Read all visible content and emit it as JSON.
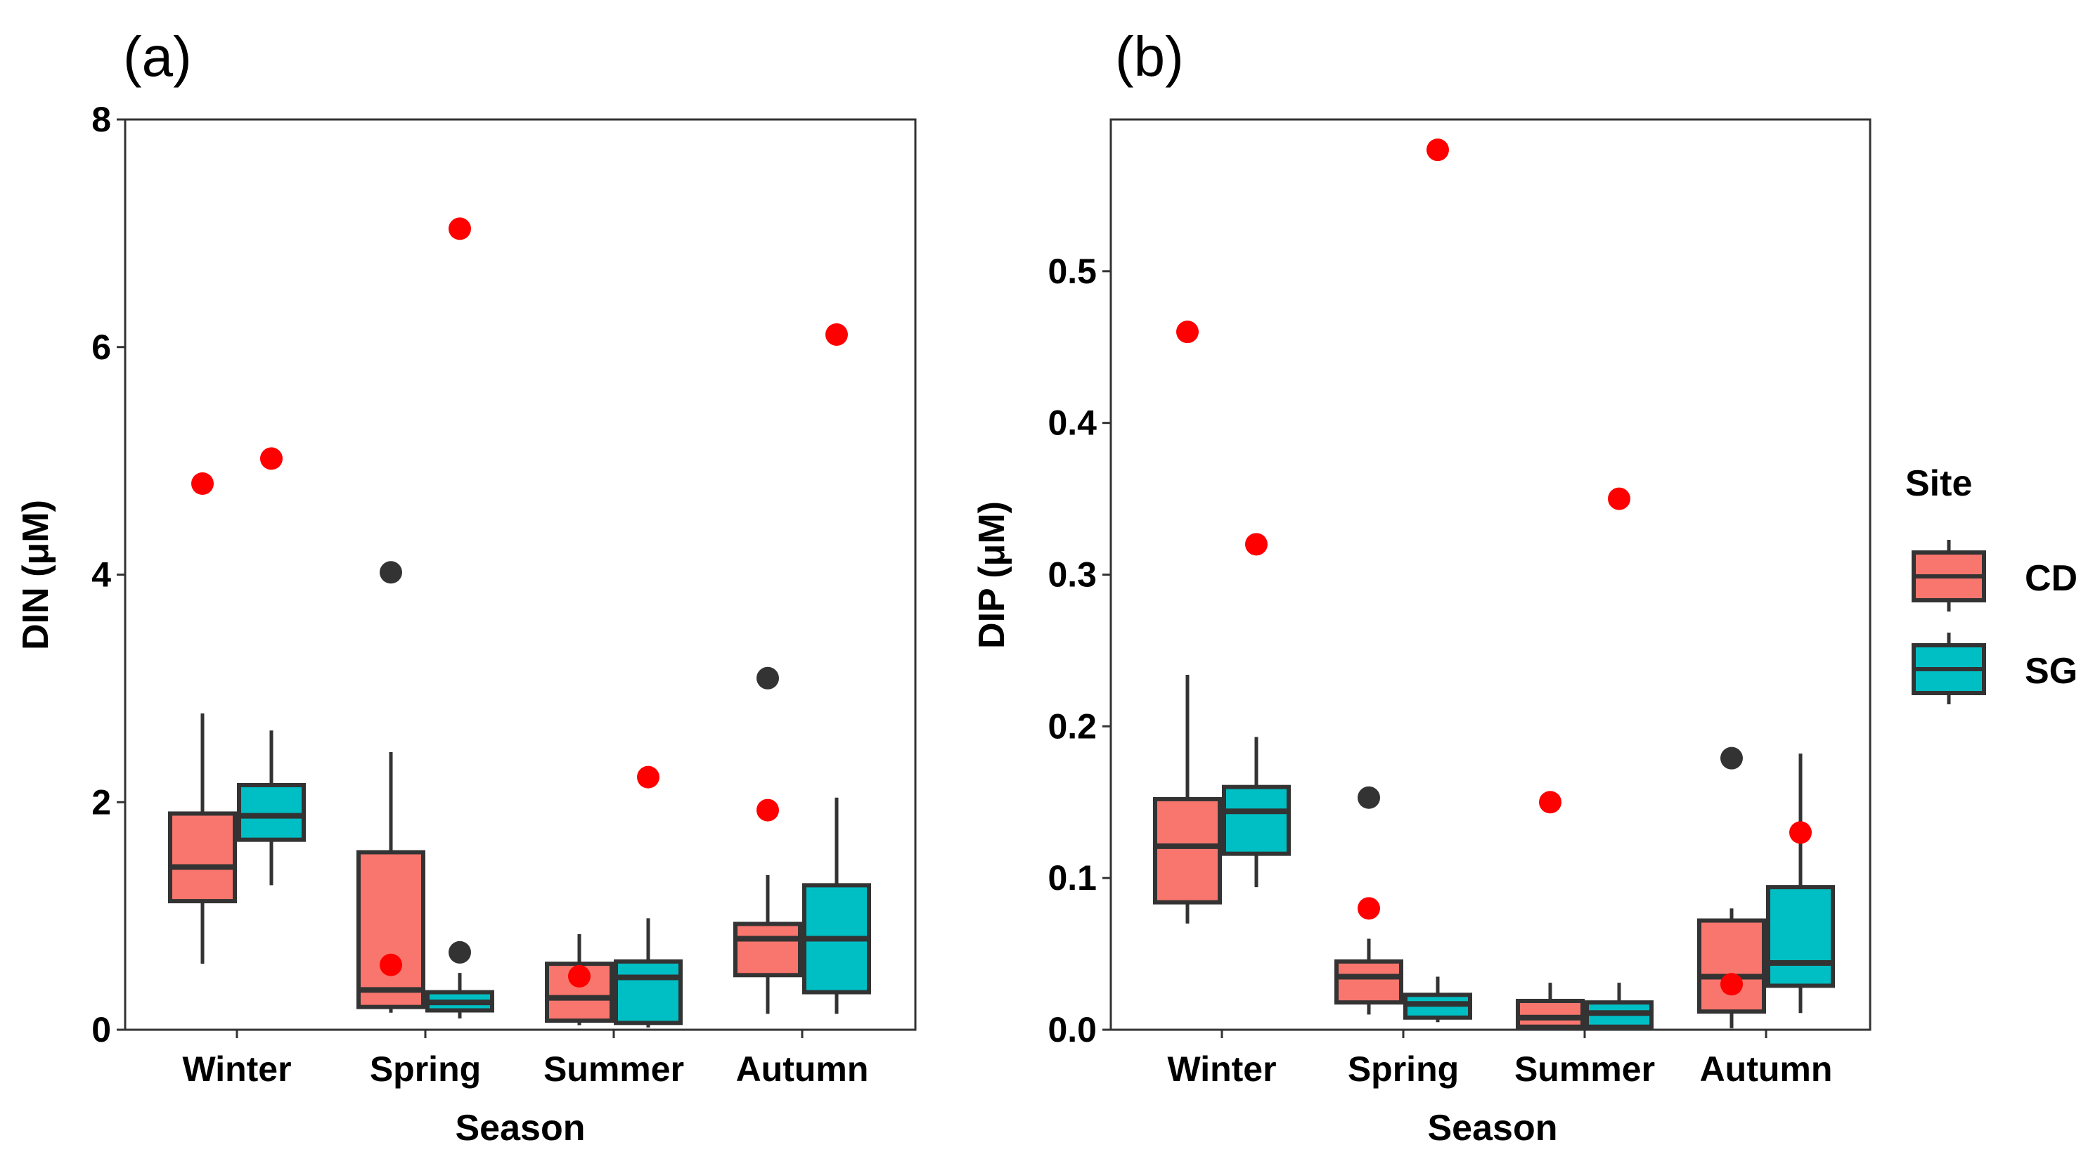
{
  "chart_data": [
    {
      "type": "box",
      "panel_label": "(a)",
      "xlabel": "Season",
      "ylabel": "DIN (μM)",
      "categories": [
        "Winter",
        "Spring",
        "Summer",
        "Autumn"
      ],
      "ylim": [
        0,
        8
      ],
      "yticks": [
        0,
        2,
        4,
        6,
        8
      ],
      "ytick_labels": [
        "0",
        "2",
        "4",
        "6",
        "8"
      ],
      "grid": false,
      "series": [
        {
          "name": "CD",
          "boxes": [
            {
              "whisker_low": 0.58,
              "q1": 1.13,
              "median": 1.43,
              "q3": 1.9,
              "whisker_high": 2.78,
              "outliers": []
            },
            {
              "whisker_low": 0.15,
              "q1": 0.2,
              "median": 0.35,
              "q3": 1.56,
              "whisker_high": 2.44,
              "outliers": [
                4.02
              ]
            },
            {
              "whisker_low": 0.04,
              "q1": 0.08,
              "median": 0.28,
              "q3": 0.58,
              "whisker_high": 0.84,
              "outliers": []
            },
            {
              "whisker_low": 0.14,
              "q1": 0.48,
              "median": 0.8,
              "q3": 0.93,
              "whisker_high": 1.36,
              "outliers": [
                3.09
              ]
            }
          ],
          "highlight_points": [
            4.8,
            0.57,
            0.47,
            1.93
          ]
        },
        {
          "name": "SG",
          "boxes": [
            {
              "whisker_low": 1.27,
              "q1": 1.67,
              "median": 1.88,
              "q3": 2.15,
              "whisker_high": 2.63,
              "outliers": []
            },
            {
              "whisker_low": 0.1,
              "q1": 0.17,
              "median": 0.24,
              "q3": 0.33,
              "whisker_high": 0.5,
              "outliers": [
                0.68
              ]
            },
            {
              "whisker_low": 0.02,
              "q1": 0.06,
              "median": 0.46,
              "q3": 0.6,
              "whisker_high": 0.98,
              "outliers": []
            },
            {
              "whisker_low": 0.14,
              "q1": 0.33,
              "median": 0.8,
              "q3": 1.27,
              "whisker_high": 2.04,
              "outliers": []
            }
          ],
          "highlight_points": [
            5.02,
            7.04,
            2.22,
            6.11
          ]
        }
      ]
    },
    {
      "type": "box",
      "panel_label": "(b)",
      "xlabel": "Season",
      "ylabel": "DIP (μM)",
      "categories": [
        "Winter",
        "Spring",
        "Summer",
        "Autumn"
      ],
      "ylim": [
        0,
        0.6
      ],
      "yticks": [
        0,
        0.1,
        0.2,
        0.3,
        0.4,
        0.5
      ],
      "ytick_labels": [
        "0.0",
        "0.1",
        "0.2",
        "0.3",
        "0.4",
        "0.5"
      ],
      "grid": false,
      "series": [
        {
          "name": "CD",
          "boxes": [
            {
              "whisker_low": 0.07,
              "q1": 0.084,
              "median": 0.121,
              "q3": 0.152,
              "whisker_high": 0.234,
              "outliers": []
            },
            {
              "whisker_low": 0.01,
              "q1": 0.018,
              "median": 0.035,
              "q3": 0.045,
              "whisker_high": 0.06,
              "outliers": [
                0.153
              ]
            },
            {
              "whisker_low": 0.001,
              "q1": 0.002,
              "median": 0.008,
              "q3": 0.019,
              "whisker_high": 0.031,
              "outliers": []
            },
            {
              "whisker_low": 0.001,
              "q1": 0.012,
              "median": 0.035,
              "q3": 0.072,
              "whisker_high": 0.08,
              "outliers": [
                0.179
              ]
            }
          ],
          "highlight_points": [
            0.46,
            0.08,
            0.15,
            0.03
          ]
        },
        {
          "name": "SG",
          "boxes": [
            {
              "whisker_low": 0.094,
              "q1": 0.116,
              "median": 0.144,
              "q3": 0.16,
              "whisker_high": 0.193,
              "outliers": []
            },
            {
              "whisker_low": 0.005,
              "q1": 0.008,
              "median": 0.017,
              "q3": 0.023,
              "whisker_high": 0.035,
              "outliers": []
            },
            {
              "whisker_low": 0.001,
              "q1": 0.002,
              "median": 0.011,
              "q3": 0.018,
              "whisker_high": 0.031,
              "outliers": []
            },
            {
              "whisker_low": 0.011,
              "q1": 0.029,
              "median": 0.044,
              "q3": 0.094,
              "whisker_high": 0.182,
              "outliers": []
            }
          ],
          "highlight_points": [
            0.32,
            0.58,
            0.35,
            0.13
          ]
        }
      ]
    }
  ],
  "legend": {
    "title": "Site",
    "items": [
      {
        "label": "CD",
        "color": "#F8766D"
      },
      {
        "label": "SG",
        "color": "#00BFC4"
      }
    ]
  },
  "colors": {
    "CD": "#F8766D",
    "SG": "#00BFC4",
    "box_stroke": "#333333",
    "highlight": "#FF0000",
    "outlier": "#333333"
  }
}
